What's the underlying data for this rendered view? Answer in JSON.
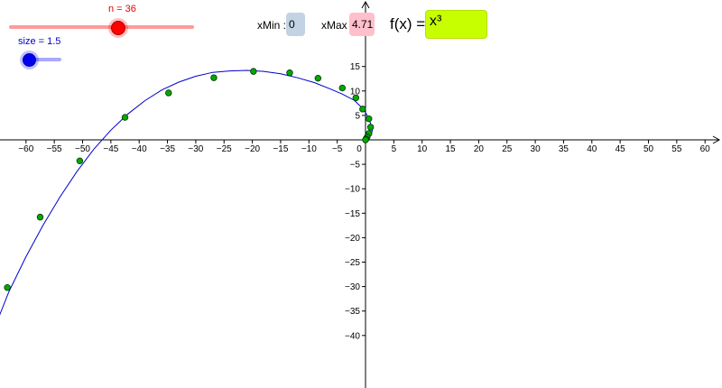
{
  "sliders": {
    "n": {
      "label": "n = 36",
      "value": 36,
      "color": "#ff0000"
    },
    "size": {
      "label": "size = 1.5",
      "value": 1.5,
      "color": "#0000ff"
    }
  },
  "fields": {
    "xmin_label": "xMin :",
    "xmin_value": "0",
    "xmax_label": "xMax",
    "xmax_value": "4.71",
    "fx_label": "f(x) =",
    "fx_value": "x³"
  },
  "chart_data": {
    "type": "scatter",
    "title": "",
    "xlabel": "",
    "ylabel": "",
    "xlim": [
      -65,
      65
    ],
    "ylim": [
      -43,
      17
    ],
    "x_ticks": [
      -60,
      -55,
      -50,
      -45,
      -40,
      -35,
      -30,
      -25,
      -20,
      -15,
      -10,
      -5,
      0,
      5,
      10,
      15,
      20,
      25,
      30,
      35,
      40,
      45,
      50,
      55,
      60
    ],
    "y_ticks": [
      -40,
      -35,
      -30,
      -25,
      -20,
      -15,
      -10,
      -5,
      5,
      10,
      15
    ],
    "x_tick_labels": [
      "−60",
      "−55",
      "−50",
      "−45",
      "−40",
      "−35",
      "−30",
      "−25",
      "−20",
      "−15",
      "−10",
      "−5",
      "0",
      "5",
      "10",
      "15",
      "20",
      "25",
      "30",
      "35",
      "40",
      "45",
      "50",
      "55",
      "60"
    ],
    "y_tick_labels": [
      "−40",
      "−35",
      "−30",
      "−25",
      "−20",
      "−15",
      "−10",
      "−5",
      "5",
      "10",
      "15"
    ],
    "curve_color": "#0000cc",
    "point_color": "#00aa00",
    "curve": [
      [
        -66,
        -42.8
      ],
      [
        -65,
        -36.8
      ],
      [
        -63,
        -31.0
      ],
      [
        -60,
        -23.9
      ],
      [
        -57,
        -17.5
      ],
      [
        -54,
        -11.7
      ],
      [
        -51,
        -6.5
      ],
      [
        -48,
        -1.9
      ],
      [
        -45,
        2.0
      ],
      [
        -42,
        5.3
      ],
      [
        -39,
        8.0
      ],
      [
        -36,
        10.2
      ],
      [
        -33,
        11.8
      ],
      [
        -30,
        13.0
      ],
      [
        -27,
        13.8
      ],
      [
        -24,
        14.1
      ],
      [
        -21,
        14.2
      ],
      [
        -18,
        14.0
      ],
      [
        -15,
        13.5
      ],
      [
        -12,
        12.7
      ],
      [
        -9,
        11.7
      ],
      [
        -6,
        10.3
      ],
      [
        -4,
        9.3
      ],
      [
        -2,
        8.1
      ],
      [
        -1,
        7.0
      ],
      [
        0,
        5.6
      ],
      [
        0.5,
        4.5
      ],
      [
        1,
        3.0
      ],
      [
        1.2,
        2.0
      ],
      [
        1.0,
        1.0
      ],
      [
        0.5,
        0.3
      ],
      [
        0,
        0
      ]
    ],
    "points": [
      [
        -63.3,
        -30.2
      ],
      [
        -57.5,
        -15.8
      ],
      [
        -50.5,
        -4.3
      ],
      [
        -42.5,
        4.6
      ],
      [
        -34.8,
        9.6
      ],
      [
        -26.8,
        12.7
      ],
      [
        -19.8,
        14.0
      ],
      [
        -13.4,
        13.7
      ],
      [
        -8.4,
        12.6
      ],
      [
        -4.1,
        10.6
      ],
      [
        -1.7,
        8.6
      ],
      [
        -0.5,
        6.3
      ],
      [
        0.6,
        4.3
      ],
      [
        0.9,
        2.6
      ],
      [
        0.6,
        1.3
      ],
      [
        0.3,
        0.6
      ],
      [
        0.1,
        0.2
      ],
      [
        0,
        0
      ]
    ]
  }
}
